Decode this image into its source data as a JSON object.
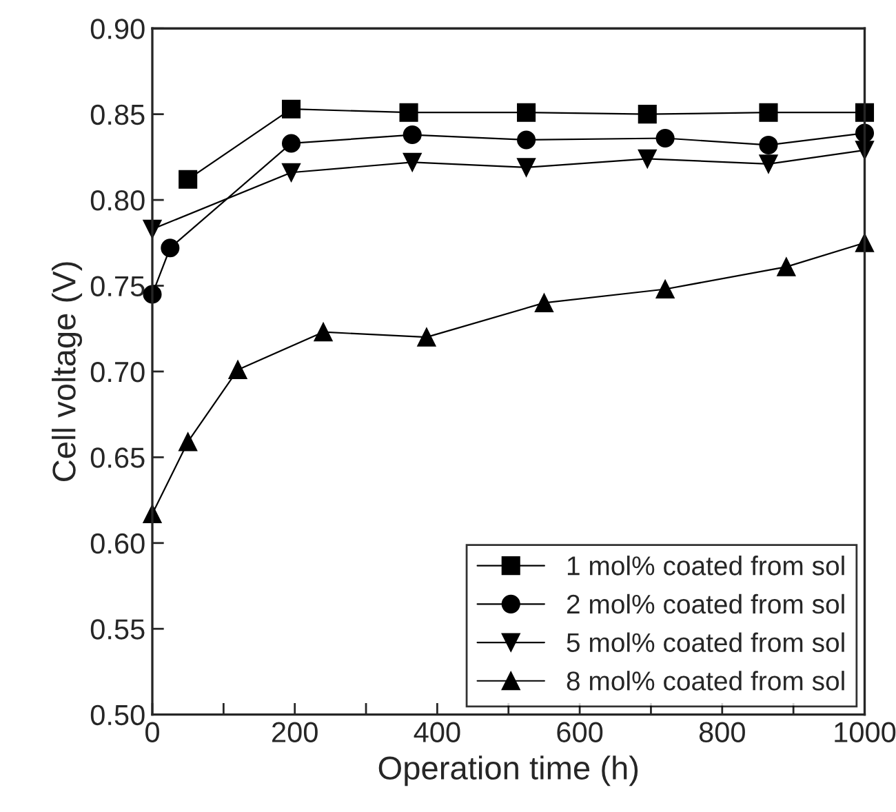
{
  "chart_data": {
    "type": "line",
    "xlabel": "Operation time (h)",
    "ylabel": "Cell voltage (V)",
    "xlim": [
      0,
      1000
    ],
    "xticks": [
      0,
      {
        "value": 100,
        "label": null
      },
      200,
      {
        "value": 300,
        "label": null
      },
      400,
      {
        "value": 500,
        "label": null
      },
      600,
      {
        "value": 700,
        "label": null
      },
      800,
      {
        "value": 900,
        "label": null
      },
      1000
    ],
    "ylim": [
      0.5,
      0.9
    ],
    "yticks": [
      {
        "value": 0.5,
        "label": "0.50"
      },
      {
        "value": 0.55,
        "label": "0.55"
      },
      {
        "value": 0.6,
        "label": "0.60"
      },
      {
        "value": 0.65,
        "label": "0.65"
      },
      {
        "value": 0.7,
        "label": "0.70"
      },
      {
        "value": 0.75,
        "label": "0.75"
      },
      {
        "value": 0.8,
        "label": "0.80"
      },
      {
        "value": 0.85,
        "label": "0.85"
      },
      {
        "value": 0.9,
        "label": "0.90"
      }
    ],
    "grid": false,
    "legend": "bottom right",
    "line_style": "solid",
    "series": [
      {
        "name": "1 mol% coated from sol",
        "color": "#000000",
        "marker": "square",
        "x": [
          50,
          195,
          360,
          525,
          695,
          865,
          1000
        ],
        "values": [
          0.812,
          0.853,
          0.851,
          0.851,
          0.85,
          0.851,
          0.851
        ]
      },
      {
        "name": "2 mol% coated from sol",
        "color": "#000000",
        "marker": "circle",
        "x": [
          0,
          25,
          195,
          365,
          525,
          720,
          865,
          1000
        ],
        "values": [
          0.745,
          0.772,
          0.833,
          0.838,
          0.835,
          0.836,
          0.832,
          0.839
        ]
      },
      {
        "name": "5 mol% coated from sol",
        "color": "#000000",
        "marker": "triangle_down",
        "x": [
          0,
          195,
          365,
          525,
          695,
          865,
          1000
        ],
        "values": [
          0.783,
          0.816,
          0.822,
          0.819,
          0.824,
          0.821,
          0.829
        ]
      },
      {
        "name": "8 mol% coated from sol",
        "color": "#000000",
        "marker": "triangle",
        "x": [
          0,
          50,
          120,
          240,
          385,
          550,
          720,
          890,
          1000
        ],
        "values": [
          0.617,
          0.659,
          0.701,
          0.723,
          0.72,
          0.74,
          0.748,
          0.761,
          0.775
        ]
      }
    ]
  }
}
